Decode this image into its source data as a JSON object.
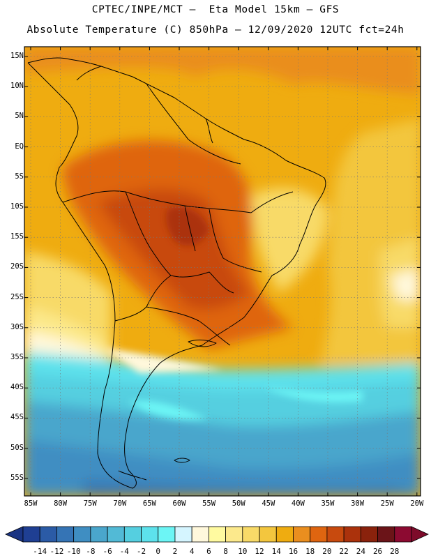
{
  "title": {
    "line1": "CPTEC/INPE/MCT –  Eta Model 15km – GFS",
    "line2": "Absolute Temperature (C) 850hPa – 12/09/2020 12UTC fct=24h"
  },
  "map": {
    "lat_labels": [
      "15N",
      "10N",
      "5N",
      "EQ",
      "5S",
      "10S",
      "15S",
      "20S",
      "25S",
      "30S",
      "35S",
      "40S",
      "45S",
      "50S",
      "55S"
    ],
    "lon_labels": [
      "85W",
      "80W",
      "75W",
      "70W",
      "65W",
      "60W",
      "55W",
      "50W",
      "45W",
      "40W",
      "35W",
      "30W",
      "25W",
      "20W"
    ]
  },
  "colorbar": {
    "labels": [
      "-14",
      "-12",
      "-10",
      "-8",
      "-6",
      "-4",
      "-2",
      "0",
      "2",
      "4",
      "6",
      "8",
      "10",
      "12",
      "14",
      "16",
      "18",
      "20",
      "22",
      "24",
      "26",
      "28"
    ],
    "colors": [
      "#1f3f93",
      "#2b5ba6",
      "#3574b5",
      "#3f8ec2",
      "#4aa6cc",
      "#52bad6",
      "#55cfe0",
      "#5de2ec",
      "#6cf5f5",
      "#d5f5ff",
      "#fff8dc",
      "#fffaa0",
      "#fce98c",
      "#f8da68",
      "#f3c63e",
      "#efac10",
      "#ea8e1f",
      "#df6510",
      "#c84a0e",
      "#ab320c",
      "#8a220c",
      "#6b1418",
      "#8c0a31"
    ],
    "under_color": "#1a3483",
    "over_color": "#7d0b2a"
  }
}
